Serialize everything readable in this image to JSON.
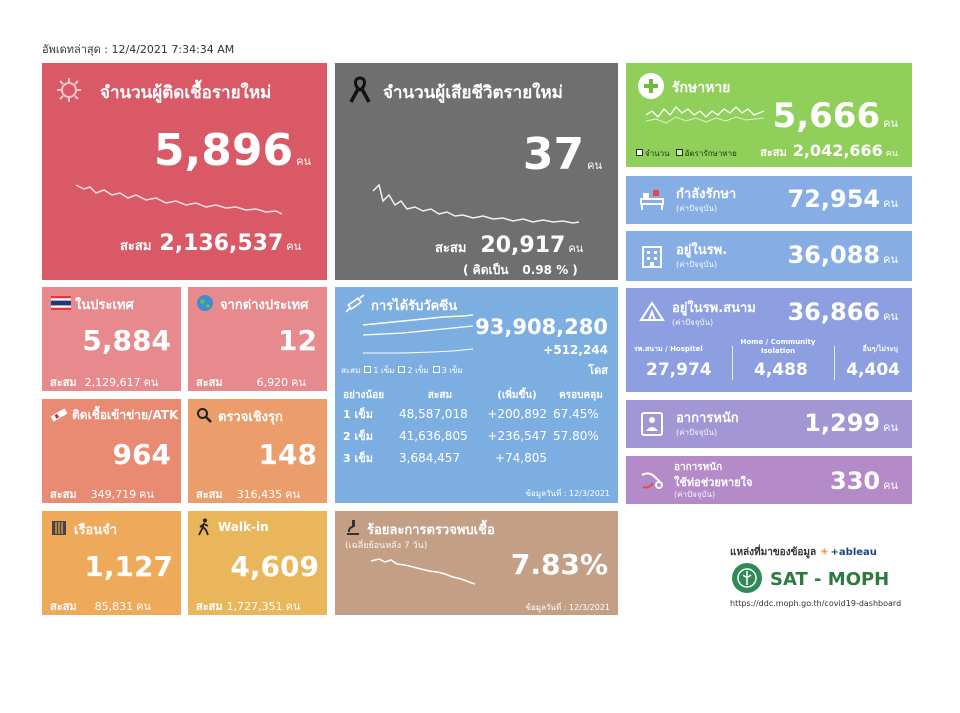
{
  "updated": "อัพเดทล่าสุด : 12/4/2021 7:34:34 AM",
  "new_cases": {
    "title": "จำนวนผู้ติดเชื้อรายใหม่",
    "value": "5,896",
    "unit": "คน",
    "cum_label": "สะสม",
    "cum_value": "2,136,537",
    "cum_unit": "คน"
  },
  "new_deaths": {
    "title": "จำนวนผู้เสียชีวิตรายใหม่",
    "value": "37",
    "unit": "คน",
    "cum_label": "สะสม",
    "cum_value": "20,917",
    "cum_unit": "คน",
    "pct_open": "( คิดเป็น",
    "pct_value": "0.98 %",
    "pct_close": ")"
  },
  "recovered": {
    "title": "รักษาหาย",
    "value": "5,666",
    "unit": "คน",
    "legend1": "จำนวน",
    "legend2": "อัตรารักษาหาย",
    "cum_label": "สะสม",
    "cum_value": "2,042,666",
    "cum_unit": "คน"
  },
  "treating": {
    "title": "กำลังรักษา",
    "note": "(ค่าปัจจุบัน)",
    "value": "72,954",
    "unit": "คน"
  },
  "hospital": {
    "title": "อยู่ในรพ.",
    "note": "(ค่าปัจจุบัน)",
    "value": "36,088",
    "unit": "คน"
  },
  "domestic": {
    "title": "ในประเทศ",
    "value": "5,884",
    "cum_label": "สะสม",
    "cum_value": "2,129,617",
    "cum_unit": "คน"
  },
  "foreign": {
    "title": "จากต่างประเทศ",
    "value": "12",
    "cum_label": "สะสม",
    "cum_value": "6,920",
    "cum_unit": "คน"
  },
  "atk": {
    "title": "ติดเชื้อเข้าข่าย/ATK",
    "value": "964",
    "cum_label": "สะสม",
    "cum_value": "349,719",
    "cum_unit": "คน"
  },
  "proactive": {
    "title": "ตรวจเชิงรุก",
    "value": "148",
    "cum_label": "สะสม",
    "cum_value": "316,435",
    "cum_unit": "คน"
  },
  "prison": {
    "title": "เรือนจำ",
    "value": "1,127",
    "cum_label": "สะสม",
    "cum_value": "85,831",
    "cum_unit": "คน"
  },
  "walkin": {
    "title": "Walk-in",
    "value": "4,609",
    "cum_label": "สะสม",
    "cum_value": "1,727,351",
    "cum_unit": "คน"
  },
  "vaccine": {
    "title": "การได้รับวัคซีน",
    "total": "93,908,280",
    "increase": "+512,244",
    "unit": "โดส",
    "legend_cum": "สะสม",
    "legend1": "1 เข็ม",
    "legend2": "2 เข็ม",
    "legend3": "3 เข็ม",
    "headers": [
      "อย่างน้อย",
      "สะสม",
      "(เพิ่มขึ้น)",
      "ครอบคลุม"
    ],
    "rows": [
      [
        "1 เข็ม",
        "48,587,018",
        "+200,892",
        "67.45%"
      ],
      [
        "2 เข็ม",
        "41,636,805",
        "+236,547",
        "57.80%"
      ],
      [
        "3 เข็ม",
        "3,684,457",
        "+74,805",
        ""
      ]
    ],
    "date": "ข้อมูลวันที่ : 12/3/2021"
  },
  "field_hospital": {
    "title": "อยู่ในรพ.สนาม",
    "note": "(ค่าปัจจุบัน)",
    "value": "36,866",
    "unit": "คน",
    "col1_label": "รพ.สนาม / Hospitel",
    "col1_value": "27,974",
    "col2_label": "Home / Community Isolation",
    "col2_value": "4,488",
    "col3_label": "อื่นๆ/ไม่ระบุ",
    "col3_value": "4,404"
  },
  "severe": {
    "title": "อาการหนัก",
    "note": "(ค่าปัจจุบัน)",
    "value": "1,299",
    "unit": "คน"
  },
  "ventilator": {
    "title": "อาการหนัก",
    "title2": "ใช้ท่อช่วยหายใจ",
    "note": "(ค่าปัจจุบัน)",
    "value": "330",
    "unit": "คน"
  },
  "positivity": {
    "title": "ร้อยละการตรวจพบเชื้อ",
    "note": "(เฉลี่ยย้อนหลัง 7 วัน)",
    "value": "7.83%",
    "date": "ข้อมูลวันที่ : 12/3/2021"
  },
  "source": {
    "label": "แหล่งที่มาของข้อมูล",
    "tableau": "+ableau",
    "brand": "SAT - MOPH",
    "url": "https://ddc.moph.go.th/covid19-dashboard"
  },
  "colors": {
    "cases": "#d95a66",
    "deaths": "#6f6f6f",
    "recovered": "#8fcf5a",
    "blue": "#86aee4",
    "vaccine": "#7daee2",
    "pink": "#e78a8d",
    "orange": "#e89b70",
    "yellow": "#e9b65b",
    "tan": "#c39f86",
    "purple": "#a296d5",
    "violet": "#b58ac8"
  }
}
